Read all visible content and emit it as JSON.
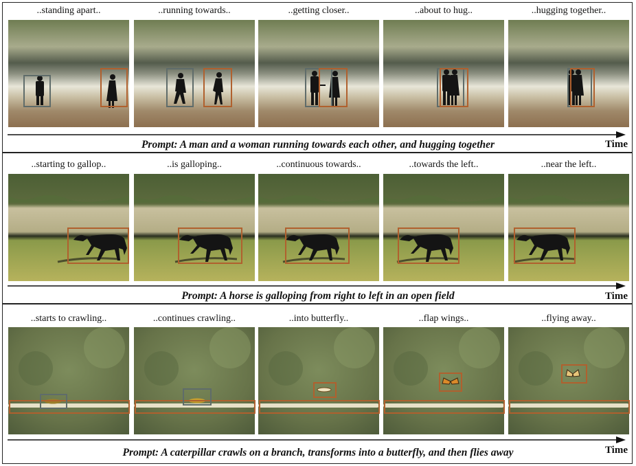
{
  "rows": [
    {
      "captions": [
        "..standing apart..",
        "..running towards..",
        "..getting closer..",
        "..about to hug..",
        "..hugging together.."
      ],
      "prompt": "Prompt: A man and a woman running towards each other, and hugging together",
      "time": "Time"
    },
    {
      "captions": [
        "..starting to gallop..",
        "..is galloping..",
        "..continuous towards..",
        "..towards the left..",
        "..near the left.."
      ],
      "prompt": "Prompt: A horse is galloping from right to left in an open field",
      "time": "Time"
    },
    {
      "captions": [
        "..starts to crawling..",
        "..continues crawling..",
        "..into butterfly..",
        "..flap wings..",
        "..flying away.."
      ],
      "prompt": "Prompt: A caterpillar crawls on a branch, transforms into a butterfly, and then flies away",
      "time": "Time"
    }
  ],
  "colors": {
    "subject_box": "#b0602e",
    "secondary_box": "#5f6c6a",
    "panel_border": "#222222"
  }
}
